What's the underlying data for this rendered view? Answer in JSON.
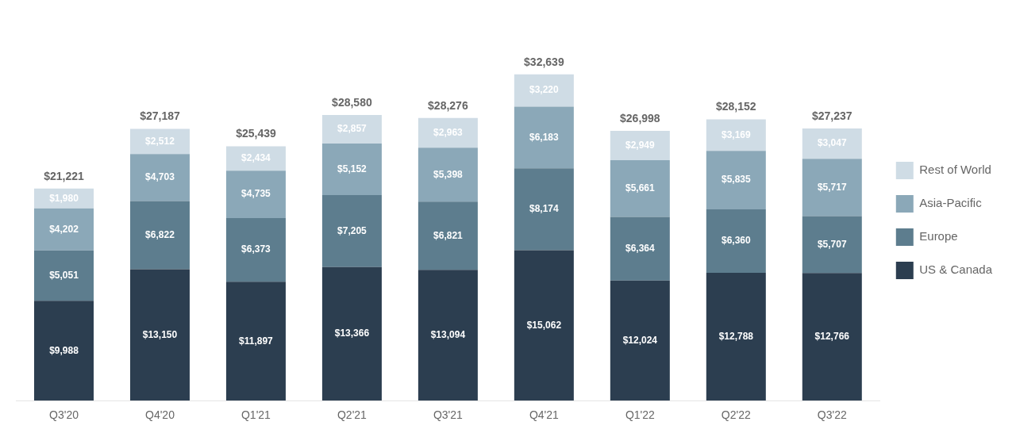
{
  "chart_data": {
    "type": "bar",
    "stacked": true,
    "categories": [
      "Q3'20",
      "Q4'20",
      "Q1'21",
      "Q2'21",
      "Q3'21",
      "Q4'21",
      "Q1'22",
      "Q2'22",
      "Q3'22"
    ],
    "series": [
      {
        "name": "US & Canada",
        "color": "#2c3e50",
        "values": [
          9988,
          13150,
          11897,
          13366,
          13094,
          15062,
          12024,
          12788,
          12766
        ],
        "value_labels": [
          "$9,988",
          "$13,150",
          "$11,897",
          "$13,366",
          "$13,094",
          "$15,062",
          "$12,024",
          "$12,788",
          "$12,766"
        ]
      },
      {
        "name": "Europe",
        "color": "#5d7d8e",
        "values": [
          5051,
          6822,
          6373,
          7205,
          6821,
          8174,
          6364,
          6360,
          5707
        ],
        "value_labels": [
          "$5,051",
          "$6,822",
          "$6,373",
          "$7,205",
          "$6,821",
          "$8,174",
          "$6,364",
          "$6,360",
          "$5,707"
        ]
      },
      {
        "name": "Asia-Pacific",
        "color": "#8ba8b8",
        "values": [
          4202,
          4703,
          4735,
          5152,
          5398,
          6183,
          5661,
          5835,
          5717
        ],
        "value_labels": [
          "$4,202",
          "$4,703",
          "$4,735",
          "$5,152",
          "$5,398",
          "$6,183",
          "$5,661",
          "$5,835",
          "$5,717"
        ]
      },
      {
        "name": "Rest of World",
        "color": "#cfdce5",
        "values": [
          1980,
          2512,
          2434,
          2857,
          2963,
          3220,
          2949,
          3169,
          3047
        ],
        "value_labels": [
          "$1,980",
          "$2,512",
          "$2,434",
          "$2,857",
          "$2,963",
          "$3,220",
          "$2,949",
          "$3,169",
          "$3,047"
        ]
      }
    ],
    "totals": [
      21221,
      27187,
      25439,
      28580,
      28276,
      32639,
      26998,
      28152,
      27237
    ],
    "total_labels": [
      "$21,221",
      "$27,187",
      "$25,439",
      "$28,580",
      "$28,276",
      "$32,639",
      "$26,998",
      "$28,152",
      "$27,237"
    ],
    "ylim": [
      0,
      38500
    ],
    "data_labels": true,
    "tick_labels": "x",
    "grid": false,
    "legend": "right"
  }
}
